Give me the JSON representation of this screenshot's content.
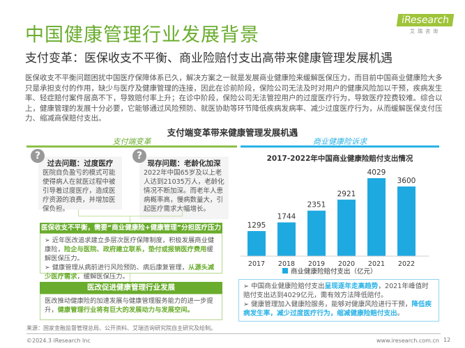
{
  "brand": {
    "logo_text": "iResearch",
    "logo_sub": "艾瑞咨询"
  },
  "title": "中国健康管理行业发展背景",
  "subtitle": "支付变革：医保收支不平衡、商业险赔付支出高带来健康管理发展机遇",
  "paragraph": "医保收支不平衡问题困扰中国医疗保障体系已久，解决方案之一就是发展商业健康险来缓解医保压力，而目前中国商业健康险大多只是承担支付的作用，缺少与医疗及健康管理的连接，因此在诊前阶段，保险公司无法及时对用户的健康风险加以干预，疾病发生率、轻症赔付案件居高不下，导致赔付率上升；在诊中阶段，保险公司无法管控用户的过度医疗行为，导致医疗控费较难。综合以上，健康管理的发展十分必要，它能够通过风险预防、就医协助等环节降低疾病发病率、减少过度医疗行为，从而缓解医保支付压力、缩减商保赔付支出。",
  "diagram": {
    "heading": "支付端变革带来健康管理发展机遇",
    "left_header": "支付端变革",
    "right_header": "商业健康险诉求",
    "past": {
      "icon": "question-icon",
      "title": "过去问题：过度医疗",
      "text": "医院自负盈亏的模式可能使得病人在就医过程中被引导着过度医疗，造成医疗资源的浪费，并增加医保负担。"
    },
    "now": {
      "icon": "question-icon",
      "title": "现存问题：老龄化加深",
      "text": "2022年中国65岁及以上老人达到21035万人，老龄化情况不断加深。而老年人患病概率高，慢病数量大，引起医疗需求大幅增长。"
    },
    "bar1": "医保收支不平衡，需要“商业健康险+健康管理”分担医疗压力",
    "bullets1": [
      {
        "a": "近年医改追求建立多层次医疗保障制度，积极发展商业健康险，",
        "h": "险企与医院、政府建立联系，垫付或报销医疗费用",
        "b": "缓解医保压力。"
      },
      {
        "a": "健康管理从病前进行风险预防、病后康复管理，",
        "h": "从源头减少医疗需求",
        "b": "，缓解医保压力。"
      }
    ],
    "bar2": "医改促进健康管理行业发展",
    "box2": {
      "a": "医改推动健康险的加速发展与健康管理服务能力的进一步提升，",
      "h": "健康管理行业将有巨大的发展动力与发展空间。"
    }
  },
  "chart_data": {
    "type": "bar",
    "title": "2017-2022年中国商业健康险赔付支出情况",
    "categories": [
      "2017",
      "2018",
      "2019",
      "2020",
      "2021",
      "2022"
    ],
    "series": [
      {
        "name": "商业健康险赔付支出（亿元）",
        "values": [
          1295,
          1744,
          2351,
          2921,
          4029,
          3600
        ]
      }
    ],
    "color": "#1fa9e1",
    "legend": "bottom",
    "grid": false
  },
  "notes": [
    {
      "a": "中国商业健康险赔付支出",
      "h": "呈现逐年走高趋势",
      "b": "，2021年峰值时赔付支出达到4029亿元，需有效方法降低赔付。"
    },
    {
      "a": "健康管理加入健康险服务，能够对健康风险进行干预，",
      "h": "降低疾病发生率，减少过度医疗行为，缩减健康险赔付支出",
      "b": "。"
    }
  ],
  "footer": {
    "source": "来源：国家金融监督管理总局、公开资料、艾瑞咨询研究院自主研究及绘制。",
    "copyright": "©2024.3 iResearch Inc",
    "url": "www.iresearch.com.cn",
    "page": "12"
  },
  "colors": {
    "green": "#6aac2e",
    "cyan": "#1fa9e1"
  }
}
